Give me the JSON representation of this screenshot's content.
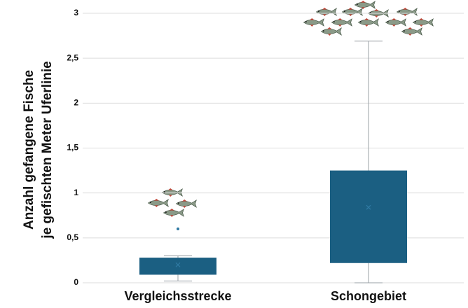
{
  "chart_data": {
    "type": "box",
    "y_label": [
      "Anzahl gefangene Fische",
      "je gefischten Meter Uferlinie"
    ],
    "categories": [
      "Vergleichsstrecke",
      "Schongebiet"
    ],
    "boxes": [
      {
        "whislo": 0.02,
        "q1": 0.09,
        "q3": 0.28,
        "whishi": 0.3,
        "mean": 0.2,
        "fliers": [
          0.6
        ]
      },
      {
        "whislo": 0,
        "q1": 0.22,
        "q3": 1.25,
        "whishi": 2.69,
        "mean": 0.84,
        "fliers": []
      }
    ],
    "color": "#1b5f82",
    "ylim": [
      0,
      3
    ],
    "yticks": [
      0,
      {
        "value": 0.5,
        "label": "0,5"
      },
      1,
      {
        "value": 1.5,
        "label": "1,5"
      },
      2,
      {
        "value": 2.5,
        "label": "2,5"
      },
      3
    ],
    "grid": true
  }
}
